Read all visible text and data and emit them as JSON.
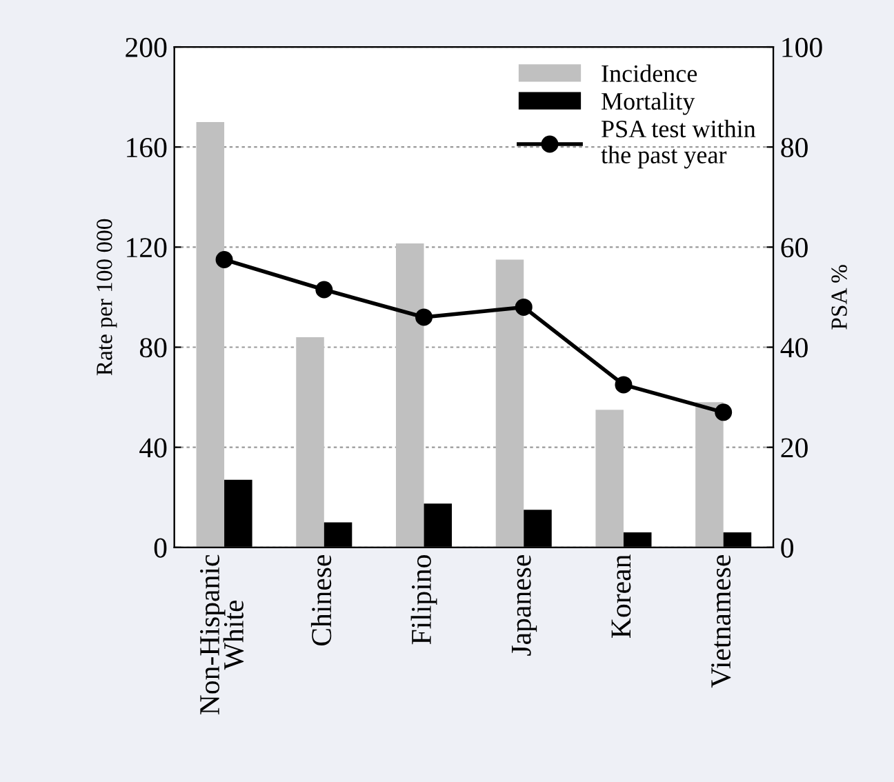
{
  "chart_data": {
    "type": "bar",
    "categories": [
      "Non-Hispanic\nWhite",
      "Chinese",
      "Filipino",
      "Japanese",
      "Korean",
      "Vietnamese"
    ],
    "ylabel": "Rate per 100 000",
    "y2label": "PSA %",
    "series": [
      {
        "name": "Incidence",
        "color": "#c0c0c0",
        "values": [
          170,
          84,
          121.5,
          115,
          55,
          58
        ]
      },
      {
        "name": "Mortality",
        "color": "#000000",
        "values": [
          27,
          10,
          17.5,
          15,
          6,
          6
        ]
      },
      {
        "name": "PSA test within\nthe past year",
        "type": "line",
        "axis": "y2",
        "color": "#000000",
        "marker": "circle",
        "values": [
          57.5,
          51.5,
          46,
          48,
          32.5,
          27
        ]
      }
    ],
    "ylim": [
      0,
      200
    ],
    "yticks": [
      0,
      40,
      80,
      120,
      160,
      200
    ],
    "y2lim": [
      0,
      100
    ],
    "y2ticks": [
      0,
      20,
      40,
      60,
      80,
      100
    ],
    "grid": "y",
    "legend": "top right"
  }
}
